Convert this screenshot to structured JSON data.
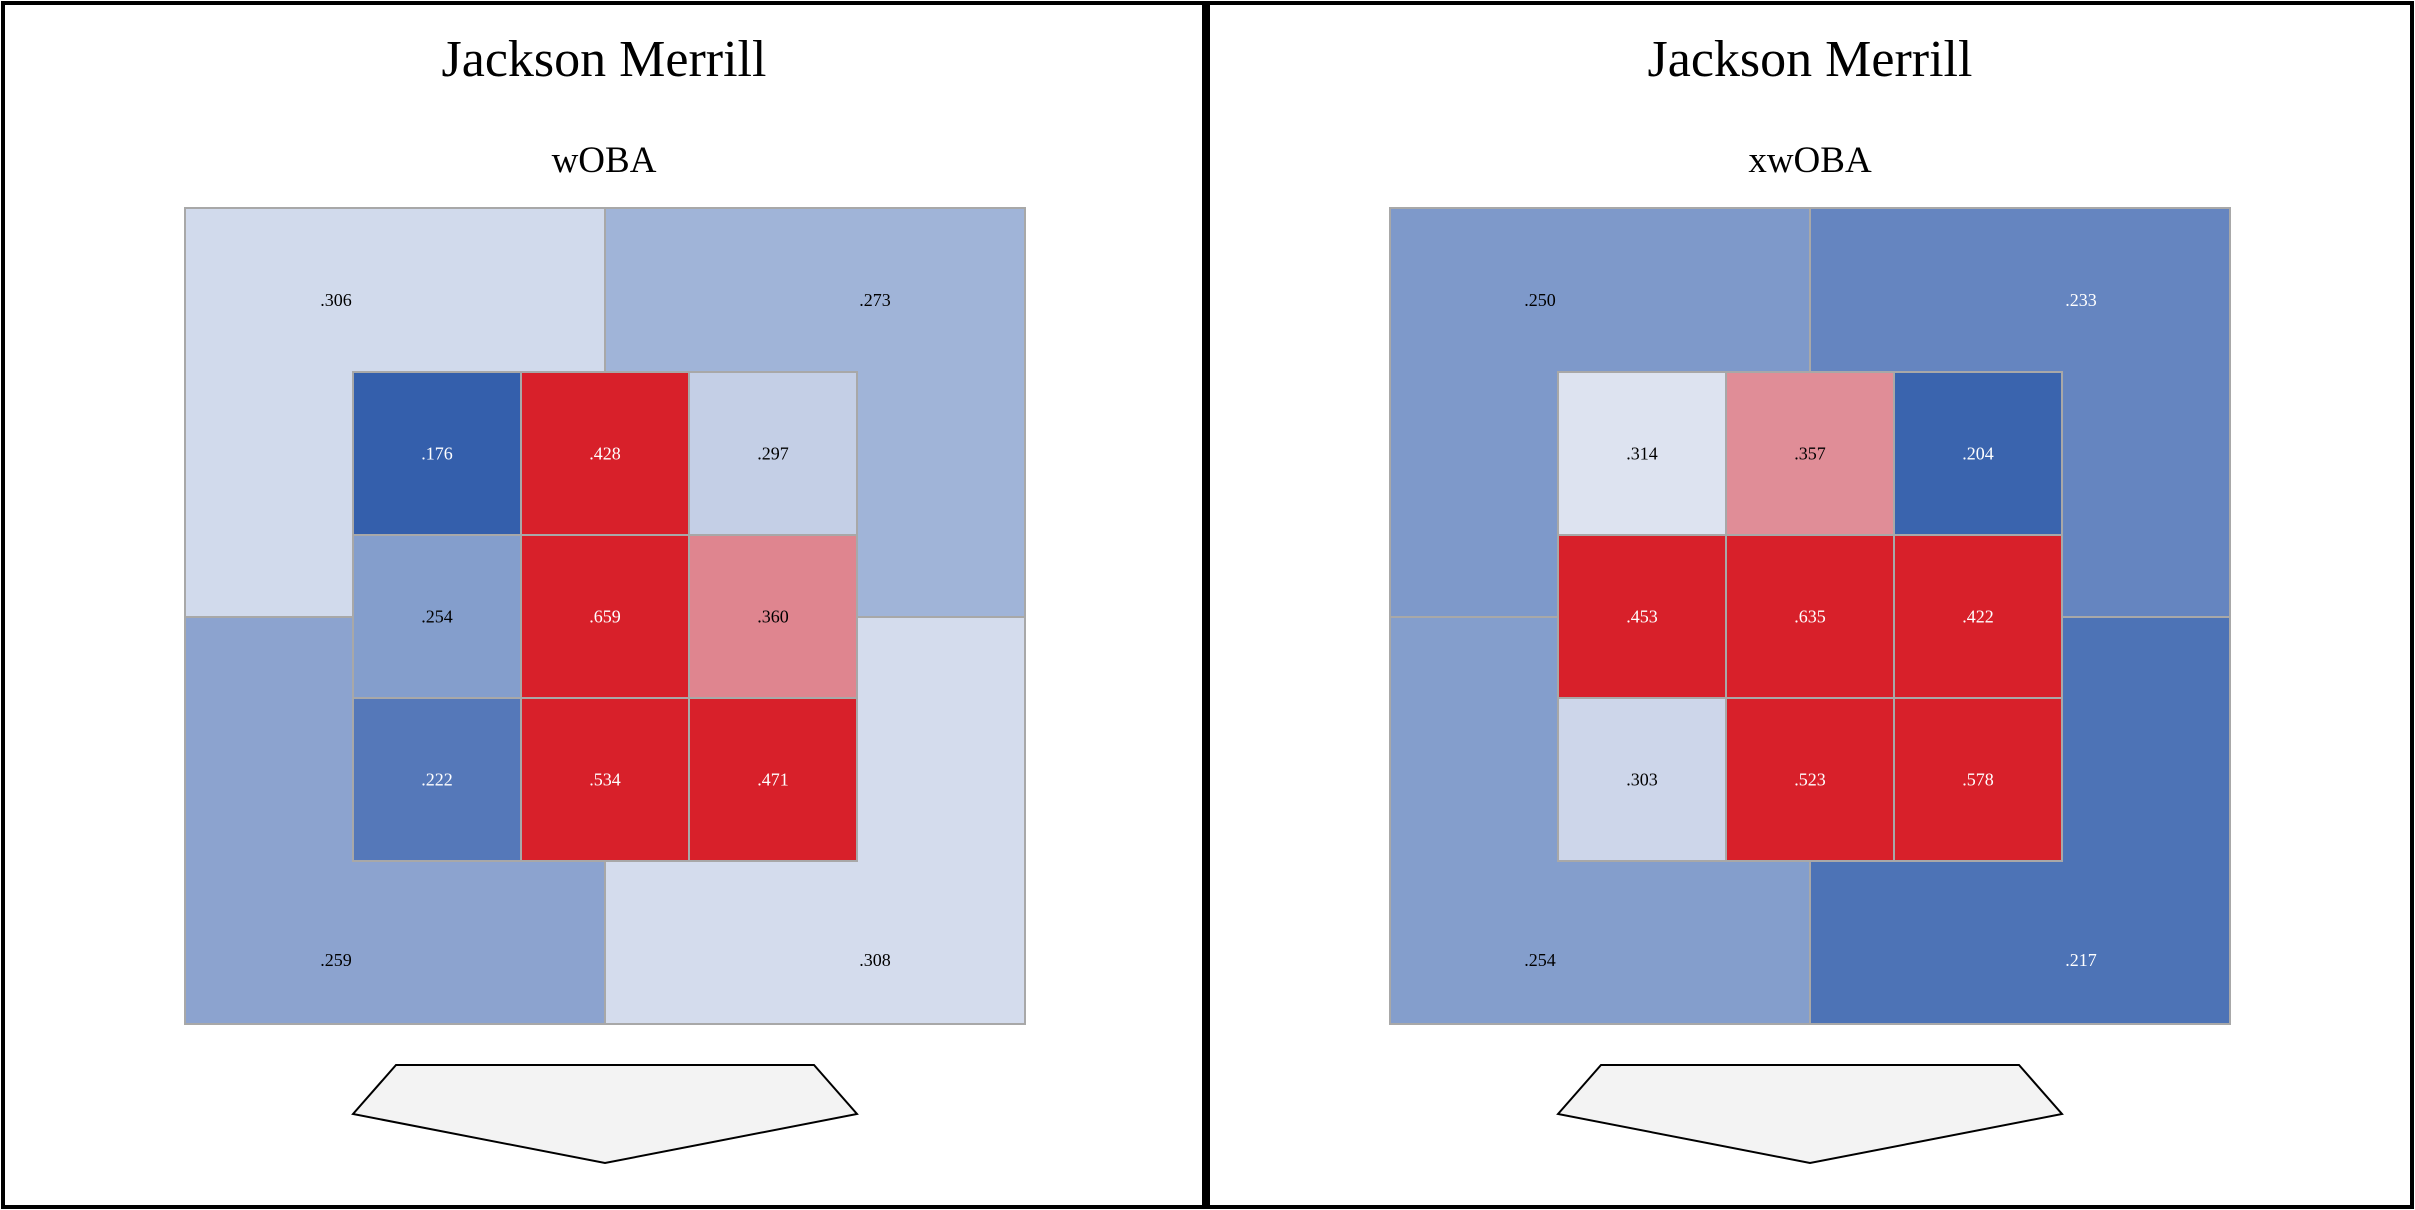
{
  "chart_data": [
    {
      "type": "heatmap",
      "title": "Jackson Merrill",
      "subtitle": "wOBA",
      "outer_zones": {
        "top_left": ".306",
        "top_right": ".273",
        "bottom_left": ".259",
        "bottom_right": ".308"
      },
      "inner_grid": [
        [
          ".176",
          ".428",
          ".297"
        ],
        [
          ".254",
          ".659",
          ".360"
        ],
        [
          ".222",
          ".534",
          ".471"
        ]
      ]
    },
    {
      "type": "heatmap",
      "title": "Jackson Merrill",
      "subtitle": "xwOBA",
      "outer_zones": {
        "top_left": ".250",
        "top_right": ".233",
        "bottom_left": ".254",
        "bottom_right": ".217"
      },
      "inner_grid": [
        [
          ".314",
          ".357",
          ".204"
        ],
        [
          ".453",
          ".635",
          ".422"
        ],
        [
          ".303",
          ".523",
          ".578"
        ]
      ]
    }
  ]
}
